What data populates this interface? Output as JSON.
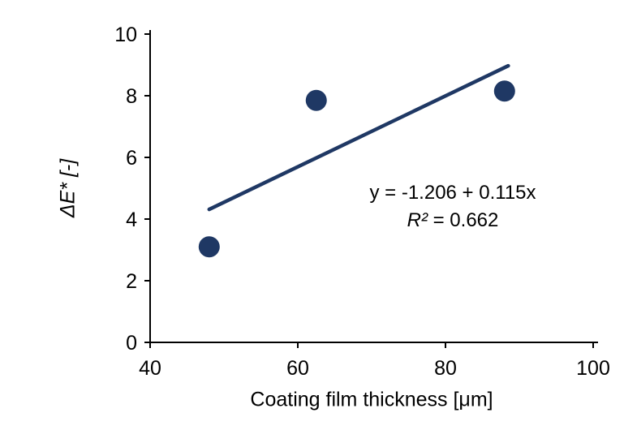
{
  "chart_data": {
    "type": "scatter",
    "title": "",
    "xlabel": "Coating film thickness [μm]",
    "ylabel": "ΔE* [-]",
    "xlim": [
      40,
      100
    ],
    "ylim": [
      0,
      10
    ],
    "x_ticks": [
      40,
      60,
      80,
      100
    ],
    "y_ticks": [
      0,
      2,
      4,
      6,
      8,
      10
    ],
    "grid": false,
    "legend": false,
    "points": [
      {
        "x": 48,
        "y": 3.1
      },
      {
        "x": 62.5,
        "y": 7.85
      },
      {
        "x": 88,
        "y": 8.15
      }
    ],
    "trendline": {
      "slope": 0.115,
      "intercept": -1.206,
      "x_start": 48,
      "x_end": 88.5
    },
    "annotation": {
      "equation": "y = -1.206 + 0.115x",
      "r2_label": "R²",
      "r2_rest": " = 0.662"
    },
    "colors": {
      "marker": "#1F3864",
      "trendline": "#1F3864",
      "axis": "#000000"
    },
    "marker_radius": 13
  }
}
